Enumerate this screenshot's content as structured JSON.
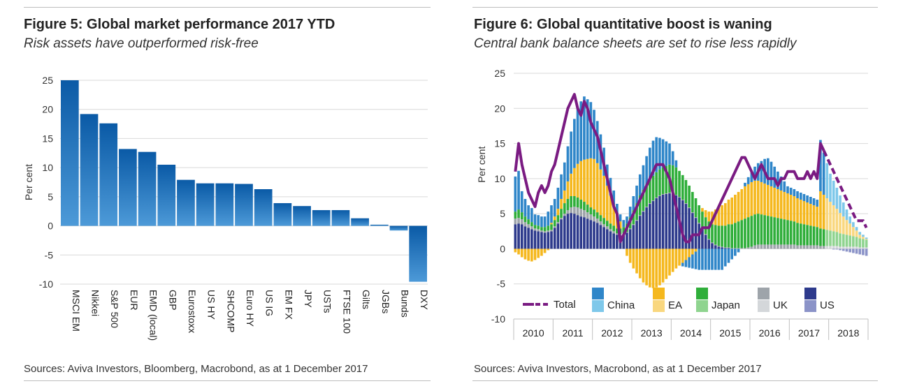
{
  "figure5": {
    "title": "Figure 5: Global market performance 2017 YTD",
    "subtitle": "Risk assets have outperformed risk-free",
    "source": "Sources: Aviva Investors, Bloomberg, Macrobond, as at 1 December 2017"
  },
  "figure6": {
    "title": "Figure 6: Global quantitative boost is waning",
    "subtitle": "Central bank balance sheets are set to rise less rapidly",
    "source": "Sources: Aviva Investors, Macrobond, as at 1 December 2017"
  },
  "colors": {
    "bar_dark": "#0a5aa6",
    "bar_light": "#4d9ad8",
    "china": "#2f86c9",
    "china_light": "#7ec8ea",
    "ea": "#f5b81e",
    "ea_light": "#f9d77f",
    "japan": "#2fae3a",
    "japan_light": "#8fd48f",
    "uk": "#9ea4aa",
    "uk_light": "#d4d7da",
    "us": "#2d3a8c",
    "us_light": "#8b93c8",
    "total": "#7a1b82",
    "grid": "#d9d9d9"
  },
  "chart_data": [
    {
      "type": "bar",
      "ylabel": "Per cent",
      "ylim": [
        -10,
        25
      ],
      "yticks": [
        25,
        20,
        15,
        10,
        5,
        0,
        -5,
        -10
      ],
      "categories": [
        "MSCI EM",
        "Nikkei",
        "S&P 500",
        "EUR",
        "EMD (local)",
        "GBP",
        "Eurostoxx",
        "US HY",
        "SHCOMP",
        "Euro HY",
        "US IG",
        "EM FX",
        "JPY",
        "USTs",
        "FTSE 100",
        "Gilts",
        "JGBs",
        "Bunds",
        "DXY"
      ],
      "values": [
        25.0,
        19.2,
        17.6,
        13.2,
        12.7,
        10.5,
        7.9,
        7.3,
        7.3,
        7.2,
        6.3,
        3.9,
        3.4,
        2.7,
        2.7,
        1.3,
        0.2,
        -0.8,
        -9.6
      ],
      "grid": true
    },
    {
      "type": "bar",
      "stacked": true,
      "ylabel": "Per cent",
      "ylim": [
        -10,
        25
      ],
      "yticks": [
        25,
        20,
        15,
        10,
        5,
        0,
        -5,
        -10
      ],
      "xlabels": [
        "2010",
        "2011",
        "2012",
        "2013",
        "2014",
        "2015",
        "2016",
        "2017",
        "2018"
      ],
      "legend": [
        "Total",
        "China",
        "EA",
        "Japan",
        "UK",
        "US"
      ],
      "legend_position": "bottom",
      "note": "Stacked monthly contributions by central bank (solid = actual, light = projected from late 2017); Total as a line, dashed for projection.",
      "x_start": "2010-01",
      "months_actual": 95,
      "months_projected": 13,
      "series": [
        {
          "name": "US",
          "values": [
            3.5,
            3.6,
            3.5,
            3.2,
            3.0,
            2.8,
            2.6,
            2.5,
            2.4,
            2.3,
            2.4,
            2.5,
            3.0,
            3.6,
            4.2,
            4.7,
            5.0,
            5.1,
            5.0,
            4.8,
            4.6,
            4.5,
            4.3,
            4.1,
            3.9,
            3.7,
            3.4,
            3.1,
            2.8,
            2.5,
            2.2,
            2.0,
            1.9,
            2.0,
            2.3,
            2.8,
            3.4,
            4.0,
            4.7,
            5.3,
            5.9,
            6.4,
            6.8,
            7.2,
            7.5,
            7.7,
            7.8,
            7.9,
            7.8,
            7.6,
            7.3,
            6.9,
            6.4,
            5.8,
            5.1,
            4.4,
            3.6,
            2.8,
            2.0,
            1.3,
            0.8,
            0.5,
            0.3,
            0.2,
            0.1,
            0.1,
            0.0,
            0.0,
            0.0,
            0.0,
            0.0,
            0.0,
            0.0,
            0.0,
            0.0,
            0.0,
            0.0,
            0.0,
            0.0,
            0.0,
            0.0,
            0.0,
            0.0,
            0.0,
            0.0,
            0.0,
            0.0,
            0.0,
            0.0,
            0.0,
            0.0,
            0.0,
            0.0,
            0.0,
            0.0,
            0.0,
            0.0,
            -0.1,
            -0.1,
            -0.2,
            -0.3,
            -0.4,
            -0.5,
            -0.6,
            -0.7,
            -0.8,
            -0.9,
            -1.0
          ]
        },
        {
          "name": "UK",
          "values": [
            0.8,
            0.8,
            0.7,
            0.6,
            0.5,
            0.4,
            0.3,
            0.3,
            0.2,
            0.2,
            0.2,
            0.2,
            0.2,
            0.2,
            0.2,
            0.3,
            0.5,
            0.8,
            1.0,
            1.1,
            1.1,
            1.0,
            0.9,
            0.8,
            0.7,
            0.6,
            0.5,
            0.4,
            0.4,
            0.3,
            0.3,
            0.2,
            0.2,
            0.2,
            0.1,
            0.1,
            0.1,
            0.1,
            0.1,
            0.1,
            0.1,
            0.1,
            0.1,
            0.1,
            0.1,
            0.1,
            0.1,
            0.1,
            0.1,
            0.1,
            0.1,
            0.1,
            0.1,
            0.1,
            0.1,
            0.1,
            0.1,
            0.1,
            0.1,
            0.1,
            0.1,
            0.1,
            0.1,
            0.1,
            0.1,
            0.1,
            0.1,
            0.1,
            0.1,
            0.1,
            0.1,
            0.2,
            0.3,
            0.5,
            0.6,
            0.6,
            0.6,
            0.6,
            0.6,
            0.6,
            0.6,
            0.6,
            0.6,
            0.6,
            0.6,
            0.6,
            0.5,
            0.5,
            0.5,
            0.5,
            0.5,
            0.5,
            0.5,
            0.4,
            0.4,
            0.4,
            0.4,
            0.4,
            0.4,
            0.3,
            0.3,
            0.3,
            0.3,
            0.3,
            0.3,
            0.2,
            0.2,
            0.2
          ]
        },
        {
          "name": "Japan",
          "values": [
            1.0,
            1.2,
            1.0,
            0.8,
            0.7,
            0.6,
            0.5,
            0.5,
            0.5,
            0.6,
            0.7,
            0.8,
            0.9,
            1.0,
            1.3,
            1.5,
            1.6,
            1.6,
            1.5,
            1.4,
            1.3,
            1.2,
            1.1,
            1.0,
            1.0,
            0.9,
            0.9,
            0.9,
            0.8,
            0.8,
            0.8,
            0.7,
            0.8,
            0.9,
            1.2,
            1.6,
            2.0,
            2.4,
            2.8,
            3.0,
            3.2,
            3.4,
            3.5,
            3.6,
            3.7,
            3.8,
            3.9,
            4.0,
            4.0,
            3.9,
            3.7,
            3.5,
            3.3,
            3.1,
            2.9,
            2.7,
            2.5,
            2.4,
            2.4,
            2.5,
            2.6,
            2.8,
            2.9,
            3.0,
            3.1,
            3.3,
            3.4,
            3.6,
            3.8,
            4.0,
            4.2,
            4.3,
            4.4,
            4.4,
            4.4,
            4.3,
            4.2,
            4.1,
            4.0,
            3.9,
            3.8,
            3.7,
            3.6,
            3.5,
            3.4,
            3.3,
            3.2,
            3.1,
            3.0,
            2.9,
            2.8,
            2.7,
            2.6,
            2.5,
            2.4,
            2.3,
            2.2,
            2.1,
            2.0,
            1.9,
            1.8,
            1.7,
            1.6,
            1.5,
            1.4,
            1.3,
            1.2,
            1.1
          ]
        },
        {
          "name": "EA",
          "values": [
            -0.5,
            -0.8,
            -1.2,
            -1.5,
            -1.7,
            -1.8,
            -1.6,
            -1.3,
            -1.0,
            -0.6,
            -0.2,
            0.2,
            0.5,
            0.9,
            1.4,
            1.8,
            2.5,
            3.2,
            4.0,
            4.8,
            5.5,
            6.0,
            6.5,
            7.0,
            7.2,
            7.0,
            6.5,
            6.0,
            5.0,
            4.0,
            3.0,
            2.0,
            1.0,
            0.0,
            -1.0,
            -2.0,
            -2.8,
            -3.5,
            -4.2,
            -4.8,
            -5.2,
            -5.5,
            -5.6,
            -5.5,
            -5.2,
            -4.8,
            -4.3,
            -3.8,
            -3.3,
            -2.8,
            -2.4,
            -2.0,
            -1.6,
            -1.2,
            -0.8,
            -0.4,
            0.0,
            0.5,
            1.0,
            1.4,
            1.8,
            2.2,
            2.6,
            2.9,
            3.2,
            3.5,
            3.8,
            4.0,
            4.2,
            4.4,
            4.6,
            4.7,
            4.8,
            4.8,
            4.7,
            4.6,
            4.5,
            4.4,
            4.3,
            4.2,
            4.1,
            4.0,
            3.9,
            3.8,
            3.7,
            3.6,
            3.5,
            3.4,
            3.3,
            3.2,
            3.1,
            3.0,
            2.9,
            5.3,
            4.9,
            4.5,
            4.1,
            3.7,
            3.3,
            2.9,
            2.5,
            2.1,
            1.7,
            1.3,
            0.9,
            0.5,
            0.3,
            0.1
          ]
        },
        {
          "name": "China",
          "values": [
            5.0,
            5.5,
            3.0,
            2.5,
            2.0,
            2.0,
            1.5,
            1.5,
            1.5,
            1.5,
            2.0,
            2.5,
            2.5,
            3.0,
            3.5,
            4.0,
            5.0,
            6.0,
            7.0,
            8.0,
            8.5,
            9.0,
            8.5,
            8.0,
            7.0,
            6.0,
            5.0,
            4.0,
            3.0,
            2.5,
            2.0,
            1.5,
            1.0,
            1.0,
            1.0,
            1.5,
            2.0,
            2.5,
            3.0,
            3.5,
            4.0,
            4.5,
            5.0,
            5.0,
            4.5,
            4.0,
            3.5,
            3.0,
            2.0,
            1.0,
            0.0,
            -0.5,
            -1.0,
            -1.5,
            -2.0,
            -2.5,
            -3.0,
            -3.0,
            -3.0,
            -3.0,
            -3.0,
            -3.0,
            -3.0,
            -3.0,
            -2.5,
            -2.0,
            -1.5,
            -1.0,
            -0.5,
            0.0,
            0.5,
            1.0,
            1.5,
            2.0,
            2.5,
            3.0,
            3.5,
            3.8,
            3.5,
            3.0,
            2.5,
            2.0,
            1.5,
            1.0,
            1.0,
            1.0,
            1.0,
            1.0,
            1.0,
            1.0,
            1.0,
            1.0,
            1.0,
            7.3,
            6.0,
            5.0,
            4.0,
            3.5,
            3.0,
            2.5,
            2.0,
            1.5,
            1.0,
            0.7,
            0.5,
            0.4,
            0.3,
            0.2
          ]
        }
      ],
      "total_line": [
        11.0,
        15.0,
        12.0,
        10.0,
        8.0,
        7.0,
        6.0,
        8.0,
        9.0,
        8.0,
        9.0,
        11.0,
        12.0,
        14.0,
        16.0,
        18.0,
        20.0,
        21.0,
        22.0,
        20.0,
        19.0,
        21.0,
        20.0,
        18.0,
        17.0,
        16.0,
        14.0,
        12.0,
        10.0,
        8.0,
        6.0,
        5.0,
        1.0,
        2.0,
        3.0,
        4.0,
        5.0,
        6.0,
        7.0,
        8.0,
        9.0,
        10.0,
        11.0,
        12.0,
        12.0,
        12.0,
        11.0,
        10.0,
        8.0,
        6.0,
        4.0,
        2.0,
        1.0,
        1.0,
        2.0,
        2.0,
        2.0,
        3.0,
        3.0,
        3.0,
        4.0,
        5.0,
        6.0,
        7.0,
        8.0,
        9.0,
        10.0,
        11.0,
        12.0,
        13.0,
        13.0,
        12.0,
        11.0,
        10.0,
        11.0,
        12.0,
        11.0,
        10.0,
        10.0,
        10.0,
        9.0,
        10.0,
        10.0,
        11.0,
        11.0,
        11.0,
        10.0,
        10.0,
        10.0,
        11.0,
        10.0,
        11.0,
        10.0,
        15.0,
        14.0,
        13.0,
        12.0,
        11.0,
        10.0,
        9.0,
        8.0,
        7.0,
        6.0,
        5.0,
        4.0,
        4.0,
        4.0,
        3.0
      ]
    }
  ]
}
